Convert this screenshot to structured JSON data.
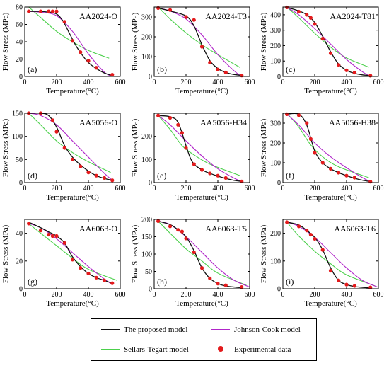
{
  "colors": {
    "proposed": "#111111",
    "johnson_cook": "#b026c9",
    "sellars_tegart": "#4cd04c",
    "experimental": "#e31a1c"
  },
  "legend": {
    "proposed": "The proposed model",
    "johnson_cook": "Johnson-Cook model",
    "sellars_tegart": "Sellars-Tegart model",
    "experimental": "Experimental data"
  },
  "chart_data": [
    {
      "type": "line",
      "panel": "(a)",
      "title": "AA2024-O",
      "xlabel": "Temperature(°C)",
      "ylabel": "Flow Stress (MPa)",
      "xlim": [
        0,
        600
      ],
      "ylim": [
        0,
        80
      ],
      "xticks": [
        0,
        200,
        400,
        600
      ],
      "yticks": [
        0,
        20,
        40,
        60,
        80
      ],
      "experimental": {
        "x": [
          25,
          100,
          150,
          175,
          200,
          250,
          300,
          350,
          400,
          450,
          550
        ],
        "y": [
          75,
          75,
          75,
          75,
          75,
          63,
          41,
          28,
          18,
          10,
          2
        ]
      },
      "proposed": {
        "x": [
          25,
          100,
          150,
          200,
          240,
          280,
          320,
          360,
          400,
          450,
          500,
          550
        ],
        "y": [
          75,
          75,
          74,
          72,
          64,
          50,
          36,
          25,
          16,
          9,
          4,
          1
        ]
      },
      "johnson_cook": {
        "x": [
          25,
          100,
          200,
          300,
          400,
          500,
          550
        ],
        "y": [
          75,
          74,
          70,
          52,
          26,
          5,
          0
        ]
      },
      "sellars_tegart": {
        "x": [
          25,
          100,
          200,
          300,
          400,
          530
        ],
        "y": [
          80,
          68,
          52,
          40,
          30,
          21
        ]
      }
    },
    {
      "type": "line",
      "panel": "(b)",
      "title": "AA2024-T3",
      "xlabel": "Temperature(°C)",
      "ylabel": "Flow Stress (MPa)",
      "xlim": [
        0,
        600
      ],
      "ylim": [
        0,
        350
      ],
      "xticks": [
        0,
        200,
        400,
        600
      ],
      "yticks": [
        0,
        100,
        200,
        300
      ],
      "experimental": {
        "x": [
          25,
          100,
          200,
          250,
          300,
          350,
          400,
          450,
          550
        ],
        "y": [
          345,
          335,
          300,
          285,
          150,
          70,
          35,
          20,
          5
        ]
      },
      "proposed": {
        "x": [
          25,
          100,
          200,
          250,
          300,
          350,
          400,
          450,
          500,
          550
        ],
        "y": [
          345,
          330,
          305,
          255,
          160,
          80,
          40,
          20,
          10,
          5
        ]
      },
      "johnson_cook": {
        "x": [
          25,
          100,
          200,
          300,
          400,
          500,
          550
        ],
        "y": [
          345,
          330,
          290,
          210,
          110,
          30,
          0
        ]
      },
      "sellars_tegart": {
        "x": [
          25,
          100,
          200,
          300,
          400,
          540
        ],
        "y": [
          350,
          290,
          220,
          160,
          110,
          45
        ]
      }
    },
    {
      "type": "line",
      "panel": "(c)",
      "title": "AA2024-T81",
      "xlabel": "Temperature(°C)",
      "ylabel": "Flow Stress (MPa)",
      "xlim": [
        0,
        600
      ],
      "ylim": [
        0,
        450
      ],
      "xticks": [
        0,
        200,
        400,
        600
      ],
      "yticks": [
        0,
        100,
        200,
        300,
        400
      ],
      "experimental": {
        "x": [
          25,
          100,
          150,
          175,
          200,
          250,
          300,
          350,
          400,
          450,
          550
        ],
        "y": [
          448,
          420,
          400,
          380,
          340,
          245,
          150,
          75,
          40,
          25,
          5
        ]
      },
      "proposed": {
        "x": [
          25,
          100,
          150,
          200,
          250,
          300,
          350,
          400,
          450,
          500,
          550
        ],
        "y": [
          448,
          425,
          400,
          350,
          260,
          160,
          80,
          40,
          20,
          10,
          5
        ]
      },
      "johnson_cook": {
        "x": [
          25,
          100,
          200,
          300,
          400,
          500,
          550
        ],
        "y": [
          448,
          400,
          310,
          210,
          110,
          30,
          0
        ]
      },
      "sellars_tegart": {
        "x": [
          25,
          100,
          200,
          300,
          400,
          540
        ],
        "y": [
          450,
          380,
          280,
          190,
          120,
          60
        ]
      }
    },
    {
      "type": "line",
      "panel": "(d)",
      "title": "AA5056-O",
      "xlabel": "Temperature(°C)",
      "ylabel": "Flow Stress (MPa)",
      "xlim": [
        0,
        600
      ],
      "ylim": [
        0,
        150
      ],
      "xticks": [
        0,
        200,
        400,
        600
      ],
      "yticks": [
        0,
        50,
        100,
        150
      ],
      "experimental": {
        "x": [
          25,
          100,
          175,
          200,
          250,
          300,
          350,
          400,
          450,
          500,
          550
        ],
        "y": [
          150,
          150,
          135,
          110,
          75,
          50,
          35,
          22,
          15,
          10,
          5
        ]
      },
      "proposed": {
        "x": [
          25,
          100,
          150,
          200,
          250,
          300,
          350,
          400,
          450,
          500,
          550
        ],
        "y": [
          150,
          150,
          145,
          120,
          80,
          55,
          38,
          25,
          15,
          9,
          5
        ]
      },
      "johnson_cook": {
        "x": [
          25,
          100,
          200,
          300,
          400,
          500,
          550
        ],
        "y": [
          150,
          145,
          125,
          90,
          55,
          20,
          5
        ]
      },
      "sellars_tegart": {
        "x": [
          25,
          100,
          200,
          300,
          400,
          540
        ],
        "y": [
          150,
          125,
          90,
          65,
          45,
          22
        ]
      }
    },
    {
      "type": "line",
      "panel": "(e)",
      "title": "AA5056-H34",
      "xlabel": "Temperature(°C)",
      "ylabel": "Flow Stress (MPa)",
      "xlim": [
        0,
        600
      ],
      "ylim": [
        0,
        300
      ],
      "xticks": [
        0,
        200,
        400,
        600
      ],
      "yticks": [
        0,
        100,
        200
      ],
      "experimental": {
        "x": [
          25,
          100,
          150,
          175,
          200,
          250,
          300,
          350,
          400,
          450,
          550
        ],
        "y": [
          290,
          280,
          250,
          215,
          150,
          80,
          55,
          40,
          30,
          20,
          5
        ]
      },
      "proposed": {
        "x": [
          25,
          100,
          150,
          200,
          225,
          250,
          300,
          350,
          400,
          450,
          500,
          550
        ],
        "y": [
          290,
          285,
          260,
          160,
          110,
          80,
          55,
          40,
          28,
          18,
          10,
          5
        ]
      },
      "johnson_cook": {
        "x": [
          25,
          100,
          200,
          300,
          400,
          500,
          550
        ],
        "y": [
          290,
          250,
          180,
          115,
          60,
          20,
          5
        ]
      },
      "sellars_tegart": {
        "x": [
          25,
          100,
          175,
          250,
          350,
          540
        ],
        "y": [
          290,
          230,
          160,
          120,
          80,
          30
        ]
      }
    },
    {
      "type": "line",
      "panel": "(f)",
      "title": "AA5056-H38",
      "xlabel": "Temperature(°C)",
      "ylabel": "Flow Stress (MPa)",
      "xlim": [
        0,
        600
      ],
      "ylim": [
        0,
        350
      ],
      "xticks": [
        0,
        200,
        400,
        600
      ],
      "yticks": [
        0,
        100,
        200,
        300
      ],
      "experimental": {
        "x": [
          25,
          100,
          150,
          175,
          200,
          250,
          300,
          350,
          400,
          450,
          550
        ],
        "y": [
          345,
          340,
          300,
          220,
          150,
          100,
          70,
          50,
          35,
          25,
          5
        ]
      },
      "proposed": {
        "x": [
          25,
          100,
          150,
          200,
          250,
          300,
          350,
          400,
          450,
          500,
          550
        ],
        "y": [
          345,
          345,
          290,
          160,
          100,
          70,
          50,
          35,
          22,
          12,
          5
        ]
      },
      "johnson_cook": {
        "x": [
          25,
          100,
          200,
          300,
          400,
          500,
          550
        ],
        "y": [
          345,
          290,
          200,
          130,
          75,
          25,
          5
        ]
      },
      "sellars_tegart": {
        "x": [
          25,
          100,
          175,
          250,
          350,
          540
        ],
        "y": [
          350,
          280,
          190,
          130,
          80,
          25
        ]
      }
    },
    {
      "type": "line",
      "panel": "(g)",
      "title": "AA6063-O",
      "xlabel": "Temperature(°C)",
      "ylabel": "Flow Stress (MPa)",
      "xlim": [
        0,
        600
      ],
      "ylim": [
        0,
        50
      ],
      "xticks": [
        0,
        200,
        400,
        600
      ],
      "yticks": [
        0,
        20,
        40
      ],
      "experimental": {
        "x": [
          25,
          100,
          150,
          175,
          200,
          250,
          300,
          350,
          400,
          450,
          500,
          550
        ],
        "y": [
          47,
          42,
          39,
          38,
          38,
          33,
          21,
          15,
          11,
          8,
          6,
          4
        ]
      },
      "proposed": {
        "x": [
          25,
          100,
          150,
          200,
          250,
          300,
          350,
          400,
          450,
          500,
          550
        ],
        "y": [
          48,
          44,
          41,
          38,
          33,
          23,
          16,
          11,
          8,
          6,
          4
        ]
      },
      "johnson_cook": {
        "x": [
          25,
          100,
          200,
          300,
          400,
          500,
          550
        ],
        "y": [
          47,
          44,
          36,
          26,
          16,
          7,
          3
        ]
      },
      "sellars_tegart": {
        "x": [
          25,
          100,
          200,
          300,
          400,
          580
        ],
        "y": [
          47,
          40,
          31,
          22,
          14,
          6
        ]
      }
    },
    {
      "type": "line",
      "panel": "(h)",
      "title": "AA6063-T5",
      "xlabel": "Temperature(°C)",
      "ylabel": "Flow Stress (MPa)",
      "xlim": [
        0,
        600
      ],
      "ylim": [
        0,
        200
      ],
      "xticks": [
        0,
        200,
        400,
        600
      ],
      "yticks": [
        0,
        50,
        100,
        150,
        200
      ],
      "experimental": {
        "x": [
          25,
          100,
          150,
          175,
          200,
          250,
          300,
          350,
          400,
          450,
          550
        ],
        "y": [
          195,
          180,
          170,
          165,
          145,
          105,
          60,
          30,
          15,
          10,
          5
        ]
      },
      "proposed": {
        "x": [
          25,
          100,
          150,
          200,
          250,
          300,
          350,
          400,
          450,
          500,
          550
        ],
        "y": [
          195,
          185,
          170,
          150,
          110,
          60,
          30,
          15,
          8,
          5,
          3
        ]
      },
      "johnson_cook": {
        "x": [
          25,
          100,
          200,
          300,
          400,
          500,
          600
        ],
        "y": [
          195,
          185,
          150,
          105,
          60,
          25,
          5
        ]
      },
      "sellars_tegart": {
        "x": [
          25,
          100,
          200,
          300,
          400,
          580
        ],
        "y": [
          195,
          160,
          115,
          80,
          45,
          10
        ]
      }
    },
    {
      "type": "line",
      "panel": "(i)",
      "title": "AA6063-T6",
      "xlabel": "Temperature(°C)",
      "ylabel": "Flow Stress (MPa)",
      "xlim": [
        0,
        600
      ],
      "ylim": [
        0,
        250
      ],
      "xticks": [
        0,
        200,
        400,
        600
      ],
      "yticks": [
        0,
        100,
        200
      ],
      "experimental": {
        "x": [
          25,
          100,
          150,
          175,
          200,
          250,
          300,
          350,
          400,
          450,
          550
        ],
        "y": [
          240,
          225,
          210,
          195,
          180,
          140,
          65,
          30,
          15,
          10,
          5
        ]
      },
      "proposed": {
        "x": [
          25,
          100,
          150,
          200,
          250,
          300,
          350,
          400,
          450,
          500,
          550
        ],
        "y": [
          240,
          230,
          210,
          185,
          140,
          75,
          30,
          15,
          8,
          5,
          3
        ]
      },
      "johnson_cook": {
        "x": [
          25,
          100,
          200,
          300,
          400,
          500,
          600
        ],
        "y": [
          240,
          225,
          185,
          130,
          75,
          30,
          5
        ]
      },
      "sellars_tegart": {
        "x": [
          25,
          100,
          200,
          300,
          400,
          580
        ],
        "y": [
          240,
          190,
          135,
          90,
          50,
          10
        ]
      }
    }
  ]
}
